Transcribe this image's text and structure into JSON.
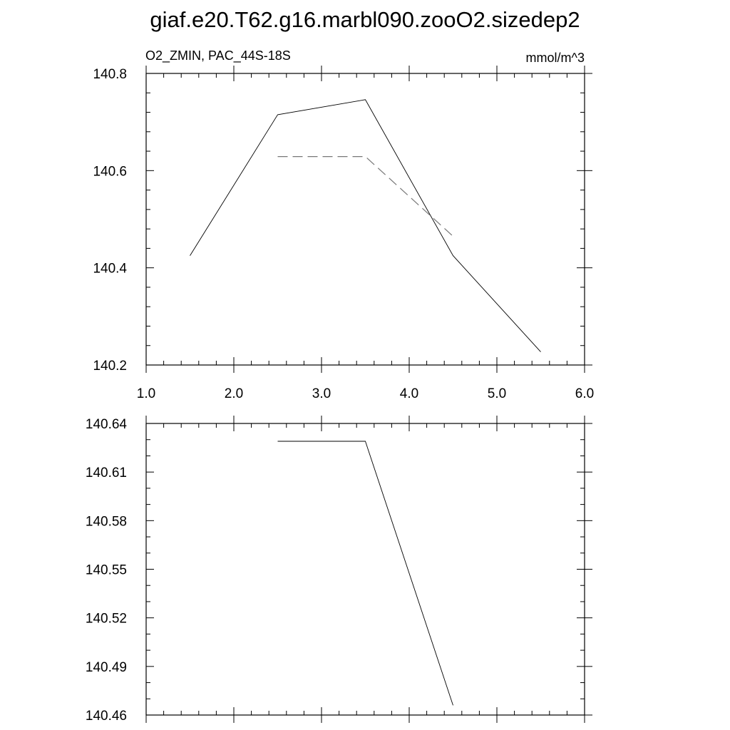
{
  "title": "giaf.e20.T62.g16.marbl090.zooO2.sizedep2",
  "chart_data": [
    {
      "type": "line",
      "left_label": "O2_ZMIN, PAC_44S-18S",
      "right_label": "mmol/m^3",
      "xlim": [
        1.0,
        6.0
      ],
      "ylim": [
        140.2,
        140.8
      ],
      "x_ticks": [
        1.0,
        2.0,
        3.0,
        4.0,
        5.0,
        6.0
      ],
      "x_tick_labels": [
        "1.0",
        "2.0",
        "3.0",
        "4.0",
        "5.0",
        "6.0"
      ],
      "y_ticks": [
        140.2,
        140.4,
        140.6,
        140.8
      ],
      "y_tick_labels": [
        "140.2",
        "140.4",
        "140.6",
        "140.8"
      ],
      "grid": false,
      "series": [
        {
          "style": "solid",
          "color": "#000000",
          "x": [
            1.5,
            2.5,
            3.5,
            4.5,
            5.5
          ],
          "y": [
            140.425,
            140.715,
            140.746,
            140.425,
            140.227
          ]
        },
        {
          "style": "dashed",
          "color": "#777777",
          "x": [
            2.5,
            3.5,
            4.5
          ],
          "y": [
            140.629,
            140.629,
            140.465
          ]
        }
      ]
    },
    {
      "type": "line",
      "xlim": [
        1.0,
        6.0
      ],
      "ylim": [
        140.46,
        140.64
      ],
      "x_ticks": [
        1.0,
        2.0,
        3.0,
        4.0,
        5.0,
        6.0
      ],
      "y_ticks": [
        140.46,
        140.49,
        140.52,
        140.55,
        140.58,
        140.61,
        140.64
      ],
      "y_tick_labels": [
        "140.46",
        "140.49",
        "140.52",
        "140.55",
        "140.58",
        "140.61",
        "140.64"
      ],
      "grid": false,
      "series": [
        {
          "style": "solid",
          "color": "#000000",
          "x": [
            2.5,
            3.5,
            4.5
          ],
          "y": [
            140.629,
            140.629,
            140.466
          ]
        }
      ]
    }
  ]
}
